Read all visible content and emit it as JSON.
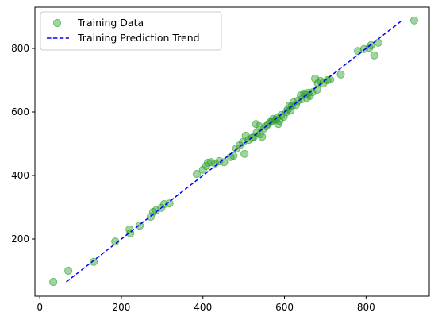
{
  "chart_data": {
    "type": "scatter",
    "title": "",
    "xlabel": "",
    "ylabel": "",
    "xlim": [
      -12,
      955
    ],
    "ylim": [
      20,
      930
    ],
    "xticks": [
      0,
      200,
      400,
      600,
      800
    ],
    "yticks": [
      200,
      400,
      600,
      800
    ],
    "grid": false,
    "legend_position": "upper-left",
    "series": [
      {
        "name": "Training Data",
        "kind": "scatter",
        "color": "#2ca02c",
        "alpha": 0.45,
        "points": [
          [
            33,
            65
          ],
          [
            70,
            100
          ],
          [
            132,
            128
          ],
          [
            185,
            192
          ],
          [
            220,
            230
          ],
          [
            222,
            218
          ],
          [
            245,
            242
          ],
          [
            272,
            270
          ],
          [
            278,
            285
          ],
          [
            285,
            290
          ],
          [
            298,
            298
          ],
          [
            305,
            310
          ],
          [
            318,
            312
          ],
          [
            385,
            405
          ],
          [
            400,
            418
          ],
          [
            408,
            430
          ],
          [
            412,
            440
          ],
          [
            420,
            442
          ],
          [
            430,
            438
          ],
          [
            440,
            445
          ],
          [
            452,
            442
          ],
          [
            468,
            458
          ],
          [
            475,
            462
          ],
          [
            482,
            485
          ],
          [
            490,
            495
          ],
          [
            498,
            505
          ],
          [
            502,
            468
          ],
          [
            505,
            525
          ],
          [
            512,
            512
          ],
          [
            520,
            518
          ],
          [
            525,
            522
          ],
          [
            530,
            562
          ],
          [
            532,
            535
          ],
          [
            538,
            555
          ],
          [
            540,
            530
          ],
          [
            545,
            522
          ],
          [
            550,
            548
          ],
          [
            555,
            555
          ],
          [
            560,
            562
          ],
          [
            565,
            568
          ],
          [
            570,
            570
          ],
          [
            572,
            578
          ],
          [
            578,
            575
          ],
          [
            582,
            582
          ],
          [
            585,
            562
          ],
          [
            588,
            572
          ],
          [
            592,
            590
          ],
          [
            598,
            585
          ],
          [
            605,
            600
          ],
          [
            608,
            608
          ],
          [
            612,
            620
          ],
          [
            615,
            605
          ],
          [
            618,
            620
          ],
          [
            622,
            630
          ],
          [
            628,
            622
          ],
          [
            632,
            635
          ],
          [
            640,
            652
          ],
          [
            642,
            640
          ],
          [
            648,
            658
          ],
          [
            652,
            655
          ],
          [
            655,
            645
          ],
          [
            658,
            660
          ],
          [
            662,
            650
          ],
          [
            668,
            662
          ],
          [
            675,
            705
          ],
          [
            680,
            670
          ],
          [
            682,
            690
          ],
          [
            688,
            698
          ],
          [
            695,
            690
          ],
          [
            705,
            700
          ],
          [
            712,
            702
          ],
          [
            738,
            718
          ],
          [
            780,
            792
          ],
          [
            795,
            798
          ],
          [
            808,
            802
          ],
          [
            812,
            810
          ],
          [
            820,
            778
          ],
          [
            830,
            818
          ],
          [
            918,
            888
          ]
        ]
      },
      {
        "name": "Training Prediction Trend",
        "kind": "line",
        "color": "#0000ff",
        "dash": "dashed",
        "points": [
          [
            65,
            65
          ],
          [
            885,
            885
          ]
        ]
      }
    ]
  }
}
